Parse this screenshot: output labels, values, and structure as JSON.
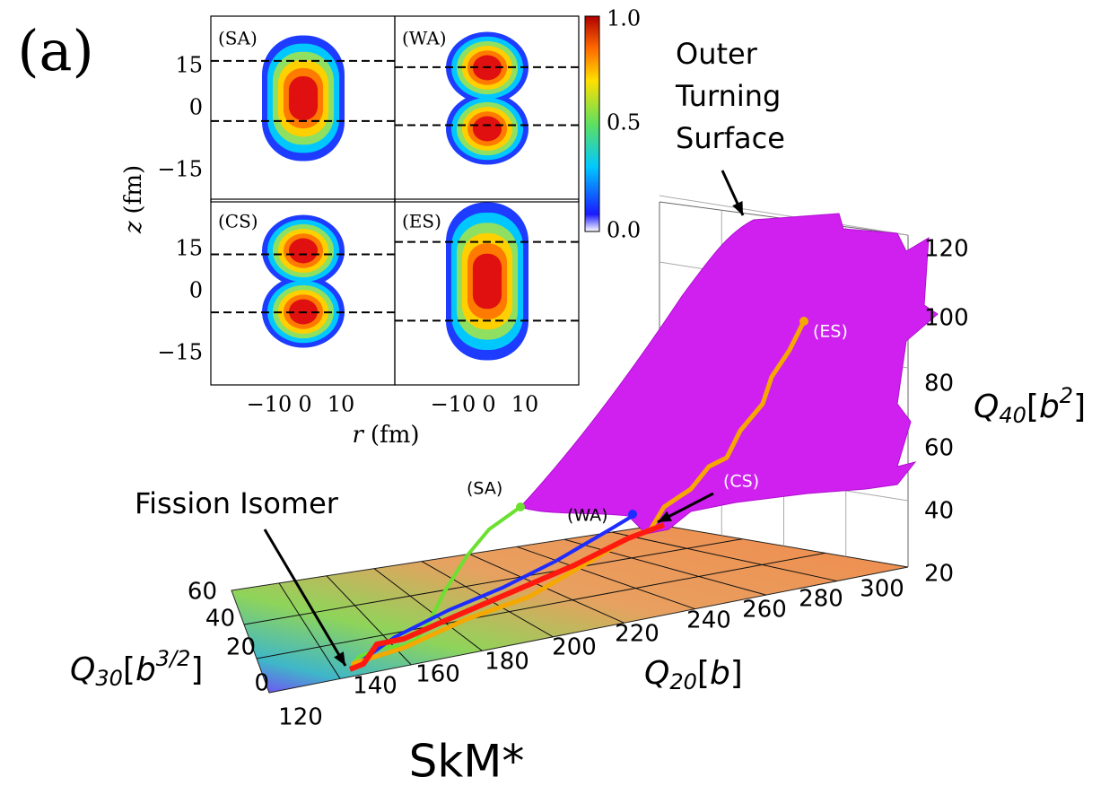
{
  "panel_label": "(a)",
  "insets": {
    "panels": [
      {
        "label": "(SA)"
      },
      {
        "label": "(WA)"
      },
      {
        "label": "(CS)"
      },
      {
        "label": "(ES)"
      }
    ],
    "y_ticks": [
      "15",
      "0",
      "−15"
    ],
    "x_ticks": [
      "−10",
      "0",
      "10"
    ],
    "x_label": {
      "symbol": "r",
      "unit": "(fm)"
    },
    "y_label": {
      "symbol": "z",
      "unit": "(fm)"
    },
    "colorbar_ticks": [
      "1.0",
      "0.5",
      "0.0"
    ]
  },
  "surface_plot": {
    "annotations": {
      "outer_turning_surface": [
        "Outer",
        "Turning",
        "Surface"
      ],
      "fission_isomer": "Fission Isomer"
    },
    "path_labels": [
      "(SA)",
      "(WA)",
      "(CS)",
      "(ES)"
    ],
    "q40_ticks": [
      "120",
      "100",
      "80",
      "60",
      "40",
      "20"
    ],
    "q20_ticks": [
      "120",
      "140",
      "160",
      "180",
      "200",
      "220",
      "240",
      "260",
      "280",
      "300"
    ],
    "q30_ticks": [
      "0",
      "20",
      "40",
      "60"
    ],
    "q40_label": {
      "symbol": "Q",
      "sub": "40",
      "unit": "b",
      "sup": "2"
    },
    "q20_label": {
      "symbol": "Q",
      "sub": "20",
      "unit": "b"
    },
    "q30_label": {
      "symbol": "Q",
      "sub": "30",
      "unit": "b",
      "sup": "3/2"
    }
  },
  "caption": "SkM*"
}
